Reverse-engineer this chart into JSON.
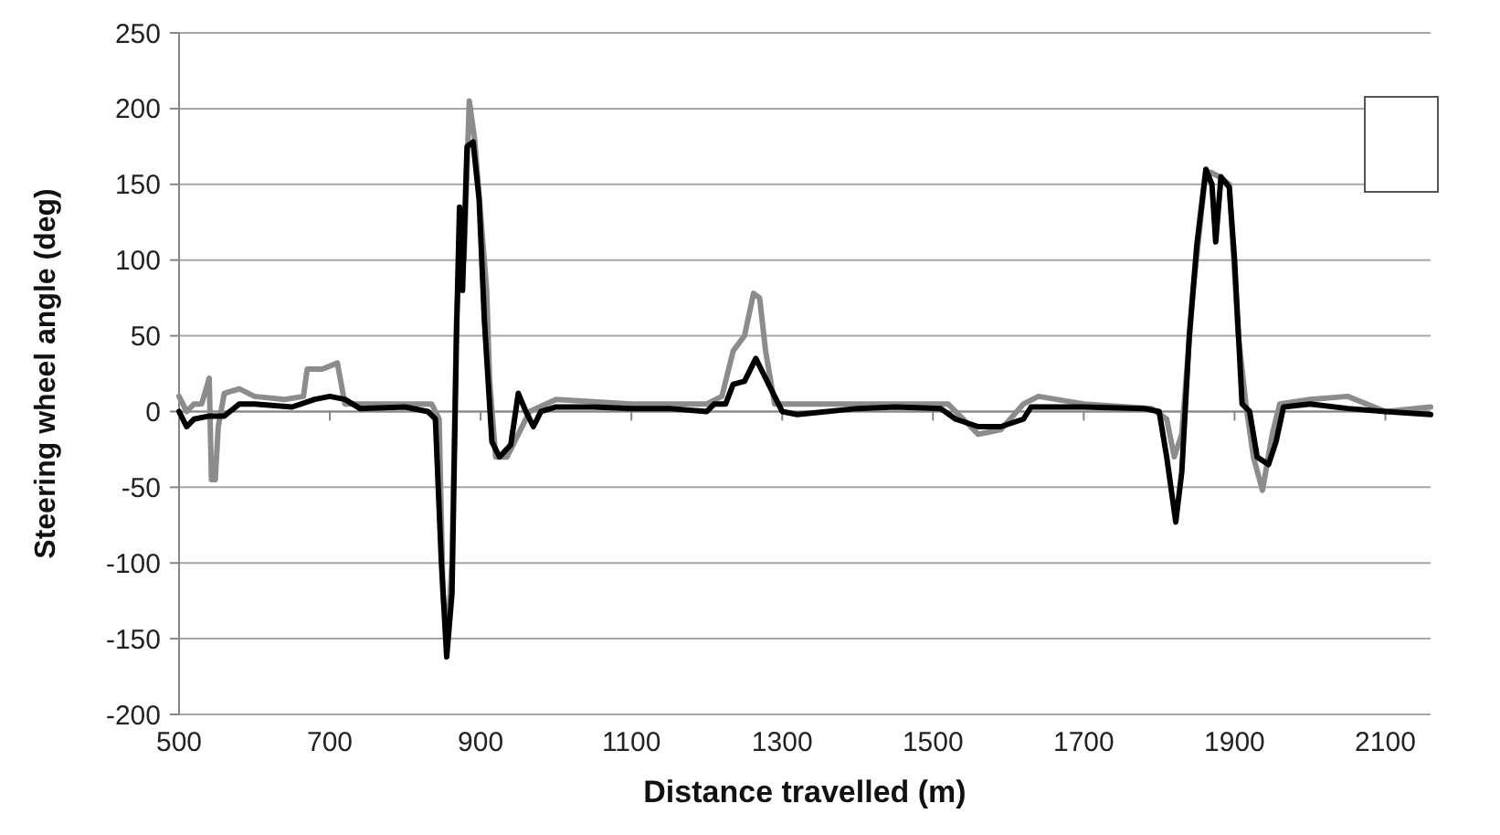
{
  "chart_data": {
    "type": "line",
    "xlabel": "Distance travelled (m)",
    "ylabel": "Steering wheel angle (deg)",
    "xlim": [
      500,
      2160
    ],
    "xticks": [
      500,
      700,
      900,
      1100,
      1300,
      1500,
      1700,
      1900,
      2100
    ],
    "ylim": [
      -200,
      250
    ],
    "yticks": [
      -200,
      -150,
      -100,
      -50,
      0,
      50,
      100,
      150,
      200,
      250
    ],
    "grid": "y",
    "marker": "none",
    "line_style": "solid",
    "series": [
      {
        "color": "#000000",
        "x": [
          500,
          510,
          520,
          540,
          560,
          580,
          600,
          650,
          680,
          700,
          720,
          740,
          800,
          830,
          840,
          848,
          855,
          862,
          868,
          872,
          876,
          882,
          890,
          898,
          905,
          915,
          925,
          940,
          950,
          960,
          970,
          980,
          1000,
          1050,
          1100,
          1150,
          1200,
          1210,
          1225,
          1235,
          1250,
          1265,
          1275,
          1285,
          1300,
          1320,
          1400,
          1450,
          1510,
          1530,
          1560,
          1590,
          1620,
          1630,
          1700,
          1780,
          1800,
          1810,
          1822,
          1830,
          1840,
          1850,
          1862,
          1870,
          1875,
          1882,
          1893,
          1900,
          1910,
          1920,
          1930,
          1945,
          1955,
          1965,
          2000,
          2050,
          2100,
          2160
        ],
        "values": [
          0,
          -10,
          -5,
          -3,
          -3,
          5,
          5,
          3,
          8,
          10,
          8,
          2,
          3,
          0,
          -5,
          -100,
          -162,
          -120,
          50,
          135,
          80,
          175,
          178,
          140,
          60,
          -20,
          -30,
          -22,
          12,
          0,
          -10,
          0,
          3,
          3,
          2,
          2,
          0,
          5,
          5,
          18,
          20,
          35,
          25,
          15,
          0,
          -2,
          2,
          3,
          2,
          -5,
          -10,
          -10,
          -5,
          3,
          3,
          2,
          0,
          -30,
          -73,
          -40,
          50,
          110,
          160,
          150,
          112,
          155,
          148,
          100,
          5,
          0,
          -30,
          -35,
          -20,
          3,
          5,
          2,
          0,
          -2
        ]
      },
      {
        "color": "#8c8c8c",
        "x": [
          500,
          510,
          520,
          530,
          540,
          543,
          548,
          552,
          560,
          580,
          600,
          640,
          665,
          670,
          690,
          710,
          720,
          800,
          835,
          845,
          850,
          856,
          862,
          868,
          874,
          878,
          885,
          892,
          900,
          908,
          912,
          920,
          935,
          950,
          965,
          1000,
          1100,
          1200,
          1220,
          1235,
          1250,
          1262,
          1270,
          1278,
          1290,
          1400,
          1520,
          1540,
          1560,
          1590,
          1620,
          1640,
          1700,
          1790,
          1810,
          1820,
          1830,
          1845,
          1860,
          1868,
          1880,
          1893,
          1905,
          1915,
          1925,
          1937,
          1950,
          1960,
          2000,
          2050,
          2100,
          2160
        ],
        "values": [
          10,
          0,
          5,
          5,
          22,
          -45,
          -45,
          -10,
          12,
          15,
          10,
          8,
          10,
          28,
          28,
          32,
          5,
          5,
          5,
          -5,
          -120,
          -150,
          -100,
          60,
          130,
          100,
          205,
          180,
          130,
          80,
          20,
          -30,
          -30,
          -15,
          0,
          8,
          5,
          5,
          10,
          40,
          50,
          78,
          75,
          40,
          5,
          5,
          5,
          -5,
          -15,
          -12,
          5,
          10,
          5,
          2,
          -5,
          -30,
          -15,
          80,
          150,
          158,
          155,
          150,
          50,
          5,
          -30,
          -52,
          -15,
          5,
          8,
          10,
          0,
          3
        ]
      }
    ]
  }
}
